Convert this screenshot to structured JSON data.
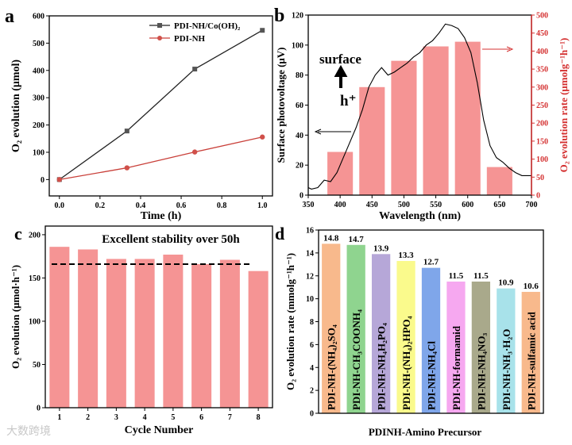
{
  "watermark": "大数跨境",
  "chart_data": [
    {
      "panel": "a",
      "type": "line",
      "xlabel": "Time (h)",
      "ylabel": "O₂ evolution (μmol)",
      "xlim": [
        -0.05,
        1.05
      ],
      "ylim": [
        -60,
        600
      ],
      "xticks": [
        0.0,
        0.2,
        0.4,
        0.6,
        0.8,
        1.0
      ],
      "yticks": [
        0,
        100,
        200,
        300,
        400,
        500,
        600
      ],
      "legend_position": "top-right",
      "series": [
        {
          "name": "PDI-NH/Co(OH)₂",
          "color": "#222222",
          "marker": "square",
          "x": [
            0,
            0.333,
            0.667,
            1.0
          ],
          "y": [
            0,
            178,
            405,
            547
          ]
        },
        {
          "name": "PDI-NH",
          "color": "#c9403a",
          "marker": "circle",
          "x": [
            0,
            0.333,
            0.667,
            1.0
          ],
          "y": [
            0,
            43,
            101,
            156
          ]
        }
      ]
    },
    {
      "panel": "b",
      "type": "bar+line",
      "xlabel": "Wavelength (nm)",
      "ylabel": "Surface photovoltage (μV)",
      "y2label": "O₂ evolution rate (μmolg⁻¹h⁻¹)",
      "xlim": [
        350,
        700
      ],
      "ylim": [
        0,
        120
      ],
      "y2lim": [
        0,
        500
      ],
      "xticks": [
        350,
        400,
        450,
        500,
        550,
        600,
        650,
        700
      ],
      "yticks": [
        0,
        20,
        40,
        60,
        80,
        100,
        120
      ],
      "y2ticks": [
        0,
        50,
        100,
        150,
        200,
        250,
        300,
        350,
        400,
        450,
        500
      ],
      "annotations": [
        "surface",
        "h⁺"
      ],
      "bar_color": "#f59494",
      "axis2_color": "#d43030",
      "bars": {
        "x": [
          400,
          450,
          500,
          550,
          600,
          650
        ],
        "values": [
          120,
          300,
          373,
          413,
          426,
          78
        ]
      },
      "line": {
        "x": [
          350,
          355,
          365,
          375,
          385,
          395,
          405,
          415,
          425,
          435,
          445,
          455,
          465,
          475,
          485,
          495,
          505,
          515,
          525,
          535,
          545,
          555,
          565,
          575,
          585,
          595,
          605,
          615,
          625,
          635,
          645,
          655,
          665,
          675,
          685,
          700
        ],
        "y": [
          5,
          4,
          5,
          10,
          9,
          15,
          25,
          35,
          45,
          57,
          72,
          80,
          85,
          80,
          82,
          85,
          88,
          92,
          95,
          100,
          103,
          108,
          114,
          113,
          111,
          105,
          95,
          75,
          50,
          33,
          25,
          22,
          18,
          15,
          13,
          13
        ]
      }
    },
    {
      "panel": "c",
      "type": "bar",
      "title": "Excellent stability over 50h",
      "xlabel": "Cycle Number",
      "ylabel": "O₂ evolution (μmol·h⁻¹)",
      "ylim": [
        0,
        210
      ],
      "yticks": [
        0,
        50,
        100,
        150,
        200
      ],
      "categories": [
        "1",
        "2",
        "3",
        "4",
        "5",
        "6",
        "7",
        "8"
      ],
      "values": [
        186,
        183,
        172,
        172,
        177,
        166,
        171,
        158
      ],
      "reference_line": 166,
      "bar_color": "#f59494"
    },
    {
      "panel": "d",
      "type": "bar",
      "xlabel": "PDINH-Amino Precursor",
      "ylabel": "O₂ evolution rate (mmolg⁻¹h⁻¹)",
      "ylim": [
        0,
        16
      ],
      "yticks": [
        0,
        2,
        4,
        6,
        8,
        10,
        12,
        14,
        16
      ],
      "categories": [
        "PDI-NH-(NH₄)₂SO₄",
        "PDI-NH-CH₃COONH₄",
        "PDI-NH-NH₄H₂PO₄",
        "PDI-NH-(NH₄)₂HPO₄",
        "PDI-NH-NH₄Cl",
        "PDI-NH-formamid",
        "PDI-NH-NH₄NO₃",
        "PDI-NH-NH₃·H₂O",
        "PDI-NH-sulfamic acid"
      ],
      "values": [
        14.8,
        14.7,
        13.9,
        13.3,
        12.7,
        11.5,
        11.5,
        10.9,
        10.6
      ],
      "value_labels": [
        "14.8",
        "14.7",
        "13.9",
        "13.3",
        "12.7",
        "11.5",
        "11.5",
        "10.9",
        "10.6"
      ],
      "colors": [
        "#f8b98c",
        "#8fd48f",
        "#b6a7d8",
        "#fafa8c",
        "#7fa6ea",
        "#f6a8f0",
        "#a9a98b",
        "#a8e2ea",
        "#f8b98c"
      ]
    }
  ]
}
